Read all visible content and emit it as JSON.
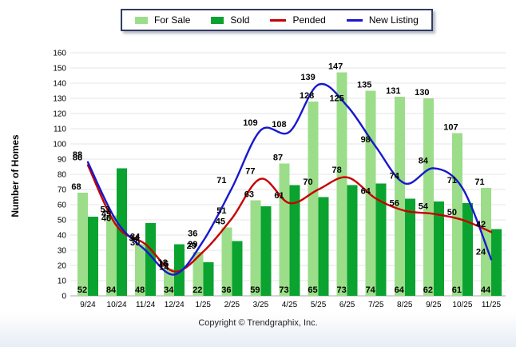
{
  "legend": {
    "items": [
      {
        "id": "for-sale",
        "label": "For Sale",
        "color": "#9CDD8A",
        "swatch": "box"
      },
      {
        "id": "sold",
        "label": "Sold",
        "color": "#0BA330",
        "swatch": "box"
      },
      {
        "id": "pended",
        "label": "Pended",
        "color": "#C80000",
        "swatch": "line"
      },
      {
        "id": "new-listing",
        "label": "New Listing",
        "color": "#1818CF",
        "swatch": "line"
      }
    ]
  },
  "y_axis_title": "Number of Homes",
  "footer": {
    "copyright": "Copyright © Trendgraphix, Inc."
  },
  "chart_data": {
    "type": "bar",
    "subtype": "grouped-bars-with-smoothed-lines",
    "title": "",
    "xlabel": "",
    "ylabel": "Number of Homes",
    "ylim": [
      0,
      160
    ],
    "ytick_step": 10,
    "grid": true,
    "legend_position": "top-center",
    "categories": [
      "9/24",
      "10/24",
      "11/24",
      "12/24",
      "1/25",
      "2/25",
      "3/25",
      "4/25",
      "5/25",
      "6/25",
      "7/25",
      "8/25",
      "9/25",
      "10/25",
      "11/25"
    ],
    "series": [
      {
        "name": "For Sale",
        "type": "bar",
        "color": "#9CDD8A",
        "values": [
          68,
          53,
          34,
          18,
          29,
          45,
          63,
          87,
          128,
          147,
          135,
          131,
          130,
          107,
          71
        ],
        "label_position": "above-bar"
      },
      {
        "name": "Sold",
        "type": "bar",
        "color": "#0BA330",
        "values": [
          52,
          84,
          48,
          34,
          22,
          36,
          59,
          73,
          65,
          73,
          74,
          64,
          62,
          61,
          44
        ],
        "label_position": "bottom-of-bar"
      },
      {
        "name": "Pended",
        "type": "line",
        "color": "#C80000",
        "values": [
          86,
          46,
          34,
          16,
          29,
          51,
          77,
          61,
          70,
          78,
          64,
          56,
          54,
          50,
          42
        ],
        "label_position": "above-point"
      },
      {
        "name": "New Listing",
        "type": "line",
        "color": "#1818CF",
        "values": [
          88,
          49,
          30,
          14,
          36,
          71,
          109,
          108,
          139,
          125,
          98,
          74,
          84,
          71,
          24
        ],
        "label_position": "above-point"
      }
    ]
  }
}
